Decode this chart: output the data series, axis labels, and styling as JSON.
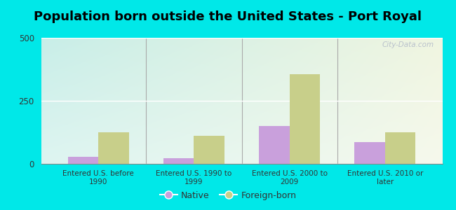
{
  "title": "Population born outside the United States - Port Royal",
  "categories": [
    "Entered U.S. before\n1990",
    "Entered U.S. 1990 to\n1999",
    "Entered U.S. 2000 to\n2009",
    "Entered U.S. 2010 or\nlater"
  ],
  "native_values": [
    28,
    22,
    150,
    85
  ],
  "foreign_values": [
    125,
    110,
    355,
    125
  ],
  "native_color": "#c9a0dc",
  "foreign_color": "#c8cf8a",
  "bg_color_left": "#c8eee8",
  "bg_color_right": "#e8f0e0",
  "bg_color_top": "#ddeedd",
  "outer_bg": "#00e8e8",
  "ylim": [
    0,
    500
  ],
  "yticks": [
    0,
    250,
    500
  ],
  "legend_native": "Native",
  "legend_foreign": "Foreign-born",
  "title_fontsize": 13,
  "bar_width": 0.32,
  "watermark": "City-Data.com"
}
